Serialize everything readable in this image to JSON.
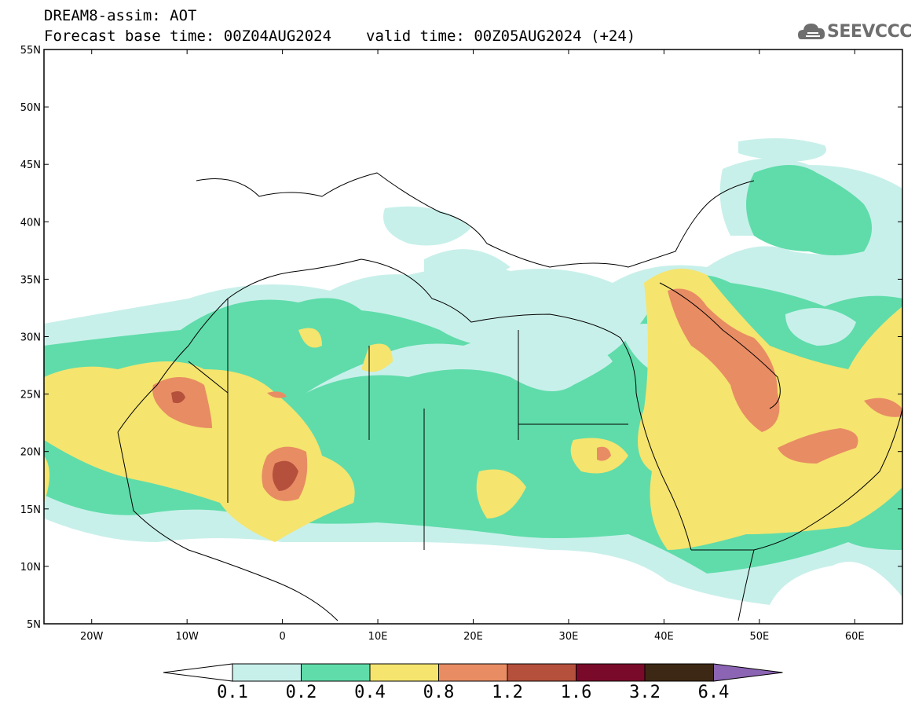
{
  "header": {
    "line1": "DREAM8-assim: AOT",
    "base_time": "Forecast base time: 00Z04AUG2024",
    "valid_time": "valid time: 00Z05AUG2024 (+24)"
  },
  "logo": {
    "text": "SEEVCCC",
    "icon": "cloud-icon"
  },
  "map": {
    "lon_range": [
      -25,
      65
    ],
    "lat_range": [
      5,
      55
    ],
    "lon_ticks": [
      "20W",
      "10W",
      "0",
      "10E",
      "20E",
      "30E",
      "40E",
      "50E",
      "60E"
    ],
    "lat_ticks": [
      "55N",
      "50N",
      "45N",
      "40N",
      "35N",
      "30N",
      "25N",
      "20N",
      "15N",
      "10N",
      "5N"
    ]
  },
  "colorbar": {
    "labels": [
      "0.1",
      "0.2",
      "0.4",
      "0.8",
      "1.2",
      "1.6",
      "3.2",
      "6.4"
    ],
    "colors": [
      "#ffffff",
      "#c8f0ea",
      "#5fdcaa",
      "#f5e46e",
      "#e88c64",
      "#b4503c",
      "#7a0a2a",
      "#3c2814",
      "#8c64b4"
    ]
  }
}
